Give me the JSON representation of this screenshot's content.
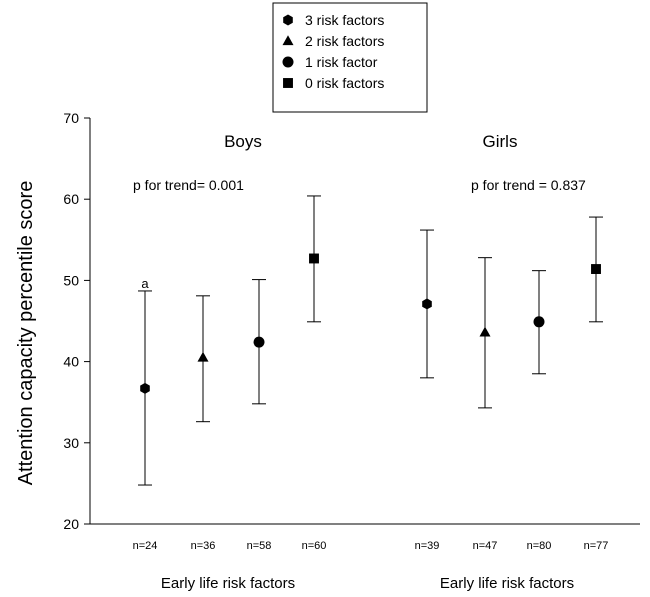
{
  "chart_data": {
    "type": "scatter",
    "ylabel": "Attention capacity percentile score",
    "ylim": [
      20,
      70
    ],
    "yticks": [
      "20",
      "30",
      "40",
      "50",
      "60",
      "70"
    ],
    "legend": {
      "placement": "top-center",
      "entries": [
        {
          "name": "3 risk factors",
          "marker": "hexagon"
        },
        {
          "name": "2 risk factors",
          "marker": "triangle"
        },
        {
          "name": "1 risk factor",
          "marker": "circle"
        },
        {
          "name": "0 risk factors",
          "marker": "square"
        }
      ]
    },
    "groups": [
      {
        "title": "Boys",
        "trend": "p  for trend= 0.001",
        "xlabel": "Early life risk factors",
        "points": [
          {
            "n": "n=24",
            "marker": "hexagon",
            "mean": 36.7,
            "low": 24.8,
            "high": 48.7,
            "annotation": "a"
          },
          {
            "n": "n=36",
            "marker": "triangle",
            "mean": 40.5,
            "low": 32.6,
            "high": 48.1,
            "annotation": ""
          },
          {
            "n": "n=58",
            "marker": "circle",
            "mean": 42.4,
            "low": 34.8,
            "high": 50.1,
            "annotation": ""
          },
          {
            "n": "n=60",
            "marker": "square",
            "mean": 52.7,
            "low": 44.9,
            "high": 60.4,
            "annotation": ""
          }
        ]
      },
      {
        "title": "Girls",
        "trend": "p for trend = 0.837",
        "xlabel": "Early life risk factors",
        "points": [
          {
            "n": "n=39",
            "marker": "hexagon",
            "mean": 47.1,
            "low": 38.0,
            "high": 56.2,
            "annotation": ""
          },
          {
            "n": "n=47",
            "marker": "triangle",
            "mean": 43.6,
            "low": 34.3,
            "high": 52.8,
            "annotation": ""
          },
          {
            "n": "n=80",
            "marker": "circle",
            "mean": 44.9,
            "low": 38.5,
            "high": 51.2,
            "annotation": ""
          },
          {
            "n": "n=77",
            "marker": "square",
            "mean": 51.4,
            "low": 44.9,
            "high": 57.8,
            "annotation": ""
          }
        ]
      }
    ]
  }
}
